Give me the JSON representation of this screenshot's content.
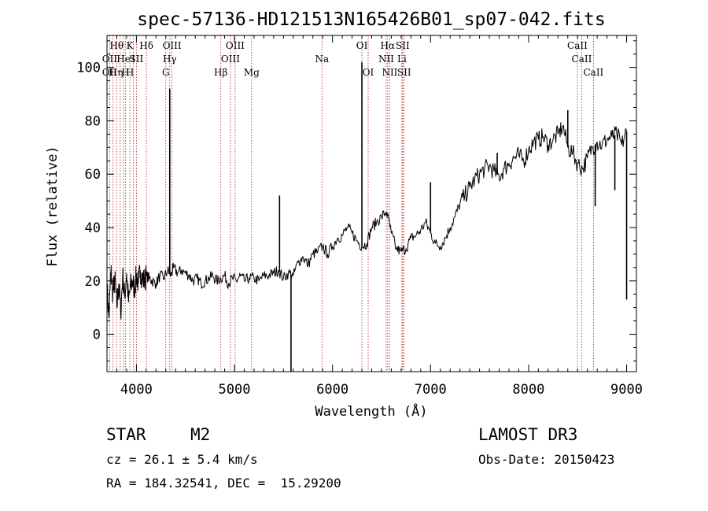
{
  "chart_data": {
    "type": "line",
    "title": "spec-57136-HD121513N165426B01_sp07-042.fits",
    "xlabel": "Wavelength (Å)",
    "ylabel": "Flux (relative)",
    "xlim": [
      3700,
      9100
    ],
    "ylim": [
      -14,
      112
    ],
    "xticks": [
      "4000",
      "5000",
      "6000",
      "7000",
      "8000",
      "9000"
    ],
    "yticks": [
      "0",
      "20",
      "40",
      "60",
      "80",
      "100"
    ],
    "grid": false,
    "series": [
      {
        "x": [
          3700,
          3720,
          3740,
          3760,
          3780,
          3800,
          3820,
          3840,
          3860,
          3880,
          3900,
          3920,
          3940,
          3960,
          3980,
          4000,
          4020,
          4040,
          4060,
          4080,
          4100,
          4130,
          4160,
          4200,
          4240,
          4280,
          4320,
          4350,
          4380,
          4420,
          4460,
          4500,
          4540,
          4580,
          4620,
          4660,
          4700,
          4740,
          4780,
          4820,
          4860,
          4900,
          4940,
          4980,
          5020,
          5060,
          5100,
          5150,
          5200,
          5250,
          5300,
          5350,
          5400,
          5450,
          5500,
          5550,
          5600,
          5650,
          5700,
          5750,
          5800,
          5850,
          5900,
          5950,
          6000,
          6050,
          6100,
          6150,
          6200,
          6250,
          6300,
          6350,
          6400,
          6450,
          6500,
          6550,
          6600,
          6650,
          6700,
          6750,
          6800,
          6850,
          6900,
          6950,
          7000,
          7050,
          7100,
          7150,
          7200,
          7250,
          7300,
          7350,
          7400,
          7450,
          7500,
          7550,
          7600,
          7650,
          7700,
          7750,
          7800,
          7850,
          7900,
          7950,
          8000,
          8050,
          8100,
          8150,
          8200,
          8250,
          8300,
          8350,
          8400,
          8450,
          8500,
          8550,
          8600,
          8650,
          8700,
          8750,
          8800,
          8850,
          8900,
          8950,
          9000
        ],
        "y": [
          18,
          6,
          24,
          15,
          21,
          10,
          19,
          8,
          22,
          14,
          23,
          12,
          18,
          20,
          17,
          22,
          19,
          24,
          21,
          20,
          22,
          21,
          20,
          19,
          22,
          21,
          24,
          22,
          25,
          23,
          24,
          23,
          22,
          20,
          21,
          19,
          20,
          21,
          22,
          20,
          21,
          22,
          19,
          21,
          20,
          22,
          20,
          21,
          21,
          20,
          22,
          22,
          23,
          24,
          21,
          23,
          22,
          27,
          29,
          26,
          30,
          31,
          33,
          30,
          33,
          36,
          37,
          40,
          38,
          35,
          33,
          34,
          40,
          42,
          44,
          46,
          38,
          32,
          31,
          32,
          36,
          37,
          39,
          42,
          38,
          34,
          33,
          36,
          40,
          44,
          49,
          52,
          55,
          58,
          60,
          62,
          63,
          61,
          59,
          62,
          64,
          66,
          67,
          65,
          69,
          72,
          73,
          74,
          71,
          73,
          75,
          78,
          70,
          68,
          64,
          62,
          66,
          70,
          72,
          71,
          73,
          74,
          75,
          71,
          76
        ]
      }
    ],
    "spikes": [
      {
        "x": 4340,
        "y": 92
      },
      {
        "x": 5460,
        "y": 52
      },
      {
        "x": 5577,
        "y": -14
      },
      {
        "x": 6300,
        "y": 102
      },
      {
        "x": 7000,
        "y": 57
      },
      {
        "x": 7680,
        "y": 68
      },
      {
        "x": 8400,
        "y": 84
      },
      {
        "x": 8680,
        "y": 48
      },
      {
        "x": 8880,
        "y": 54
      },
      {
        "x": 9000,
        "y": 13
      }
    ],
    "lines": [
      {
        "x": 3727,
        "rows": [
          {
            "row": 1,
            "text": "OII"
          },
          {
            "row": 2,
            "text": "OII"
          }
        ]
      },
      {
        "x": 3760,
        "rows": [
          {
            "row": 2,
            "text": "H"
          }
        ]
      },
      {
        "x": 3798,
        "rows": [
          {
            "row": 0,
            "text": "Hθ"
          }
        ]
      },
      {
        "x": 3835,
        "rows": [
          {
            "row": 2,
            "text": "η"
          }
        ]
      },
      {
        "x": 3869,
        "rows": [
          {
            "row": 1,
            "text": "He"
          }
        ]
      },
      {
        "x": 3889,
        "rows": [
          {
            "row": 2,
            "text": "H"
          }
        ]
      },
      {
        "x": 3934,
        "rows": [
          {
            "row": 0,
            "text": "K"
          },
          {
            "row": 2,
            "text": "H"
          }
        ]
      },
      {
        "x": 3968,
        "rows": [
          {
            "row": 1,
            "text": "I"
          }
        ]
      },
      {
        "x": 4000,
        "rows": [
          {
            "row": 1,
            "text": "SII"
          }
        ]
      },
      {
        "x": 4102,
        "rows": [
          {
            "row": 0,
            "text": "Hδ"
          }
        ]
      },
      {
        "x": 4300,
        "rows": [
          {
            "row": 2,
            "text": "G"
          }
        ]
      },
      {
        "x": 4340,
        "rows": [
          {
            "row": 1,
            "text": "Hγ"
          }
        ]
      },
      {
        "x": 4363,
        "rows": [
          {
            "row": 0,
            "text": "OIII"
          }
        ]
      },
      {
        "x": 4861,
        "rows": [
          {
            "row": 2,
            "text": "Hβ"
          }
        ]
      },
      {
        "x": 4959,
        "rows": [
          {
            "row": 1,
            "text": "OIII"
          }
        ]
      },
      {
        "x": 5007,
        "rows": [
          {
            "row": 0,
            "text": "OIII"
          }
        ]
      },
      {
        "x": 5175,
        "rows": [
          {
            "row": 2,
            "text": "Mg"
          }
        ]
      },
      {
        "x": 5893,
        "rows": [
          {
            "row": 1,
            "text": "Na"
          }
        ]
      },
      {
        "x": 6300,
        "rows": [
          {
            "row": 0,
            "text": "OI"
          }
        ]
      },
      {
        "x": 6364,
        "rows": [
          {
            "row": 2,
            "text": "OI"
          }
        ]
      },
      {
        "x": 6548,
        "rows": [
          {
            "row": 1,
            "text": "NII"
          }
        ]
      },
      {
        "x": 6563,
        "rows": [
          {
            "row": 0,
            "text": "Hα"
          }
        ]
      },
      {
        "x": 6584,
        "rows": [
          {
            "row": 2,
            "text": "NII"
          }
        ]
      },
      {
        "x": 6708,
        "rows": [
          {
            "row": 1,
            "text": "Li"
          }
        ]
      },
      {
        "x": 6716,
        "rows": [
          {
            "row": 0,
            "text": "SII"
          }
        ]
      },
      {
        "x": 6731,
        "rows": [
          {
            "row": 2,
            "text": "SII"
          }
        ]
      },
      {
        "x": 8498,
        "rows": [
          {
            "row": 0,
            "text": "CaII"
          }
        ]
      },
      {
        "x": 8542,
        "rows": [
          {
            "row": 1,
            "text": "CaII"
          }
        ]
      },
      {
        "x": 8662,
        "rows": [
          {
            "row": 2,
            "text": "CaII"
          }
        ]
      }
    ]
  },
  "info": {
    "object_class": "STAR",
    "subclass": "M2",
    "survey": "LAMOST DR3",
    "redshift": "cz = 26.1 ± 5.4 km/s",
    "obs_date": "Obs-Date: 20150423",
    "coords": "RA = 184.32541, DEC =  15.29200"
  }
}
